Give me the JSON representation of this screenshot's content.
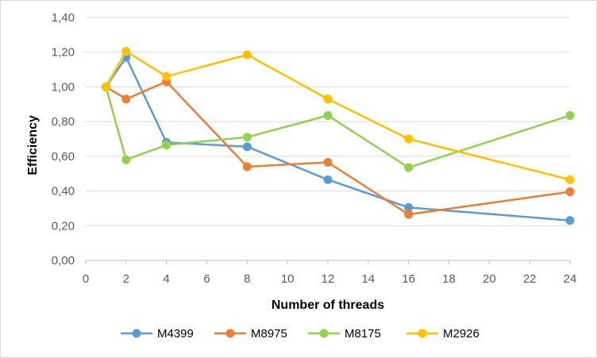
{
  "chart_data": {
    "type": "line",
    "title": "",
    "xlabel": "Number of threads",
    "ylabel": "Efficiency",
    "xlim": [
      0,
      24
    ],
    "ylim": [
      0,
      1.4
    ],
    "x_ticks": [
      "0",
      "2",
      "4",
      "6",
      "8",
      "10",
      "12",
      "14",
      "16",
      "18",
      "20",
      "22",
      "24"
    ],
    "y_ticks": [
      "0,00",
      "0,20",
      "0,40",
      "0,60",
      "0,80",
      "1,00",
      "1,20",
      "1,40"
    ],
    "grid": "horizontal",
    "legend_position": "bottom",
    "x": [
      1,
      2,
      4,
      8,
      12,
      16,
      24
    ],
    "series": [
      {
        "name": "M4399",
        "color": "#5b9bd5",
        "values": [
          1.0,
          1.17,
          0.68,
          0.655,
          0.465,
          0.305,
          0.23
        ]
      },
      {
        "name": "M8975",
        "color": "#ed7d31",
        "values": [
          1.0,
          0.93,
          1.03,
          0.54,
          0.565,
          0.265,
          0.395
        ]
      },
      {
        "name": "M8175",
        "color": "#92d050",
        "values": [
          1.0,
          0.58,
          0.665,
          0.71,
          0.835,
          0.535,
          0.835
        ]
      },
      {
        "name": "M2926",
        "color": "#ffc000",
        "values": [
          1.0,
          1.205,
          1.06,
          1.185,
          0.93,
          0.7,
          0.465
        ]
      }
    ]
  }
}
